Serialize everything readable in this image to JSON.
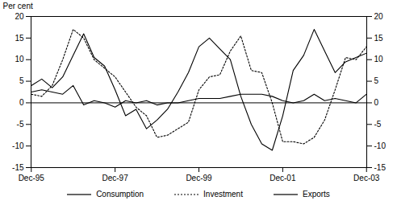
{
  "chart_data": {
    "type": "line",
    "categories": [
      "Dec-95",
      null,
      null,
      null,
      null,
      null,
      null,
      null,
      "Dec-97",
      null,
      null,
      null,
      null,
      null,
      null,
      null,
      "Dec-99",
      null,
      null,
      null,
      null,
      null,
      null,
      null,
      "Dec-01",
      null,
      null,
      null,
      null,
      null,
      null,
      null,
      "Dec-03"
    ],
    "y_label": "Per cent",
    "ylim": [
      -15,
      20
    ],
    "yticks": [
      -15,
      -10,
      -5,
      0,
      5,
      10,
      15,
      20
    ],
    "grid": false,
    "legend": "bottom",
    "series": [
      {
        "name": "Consumption",
        "color": "#000000",
        "line_style": "solid",
        "values": [
          2.5,
          3,
          2.5,
          2,
          4,
          -0.5,
          0.5,
          0,
          -1,
          0.5,
          0,
          0.5,
          -0.5,
          0,
          0,
          0.5,
          1,
          1,
          1,
          1.5,
          2,
          2,
          2,
          1.5,
          0.5,
          0,
          0.5,
          2,
          0.5,
          1,
          0.5,
          0,
          2
        ]
      },
      {
        "name": "Investment",
        "color": "#000000",
        "line_style": "dotted",
        "values": [
          2,
          1.5,
          4,
          10,
          17,
          15,
          10,
          8,
          6,
          2.5,
          -1,
          -3,
          -8,
          -7.5,
          -6,
          -4.5,
          3,
          6,
          6.5,
          12,
          15.5,
          7.5,
          7,
          0,
          -9,
          -9,
          -9.5,
          -8,
          -4,
          3,
          10.5,
          10,
          13
        ]
      },
      {
        "name": "Exports",
        "color": "#000000",
        "line_style": "solid",
        "values": [
          4,
          5.5,
          3.5,
          6,
          11,
          16,
          10.5,
          8.5,
          3,
          -3,
          -1.5,
          -6,
          -4,
          -1.5,
          2.5,
          7,
          13,
          15,
          12.5,
          10,
          1.5,
          -5,
          -9.5,
          -11,
          -3,
          7.5,
          11,
          17,
          12,
          7,
          9.5,
          10.5,
          11.5
        ]
      }
    ]
  }
}
